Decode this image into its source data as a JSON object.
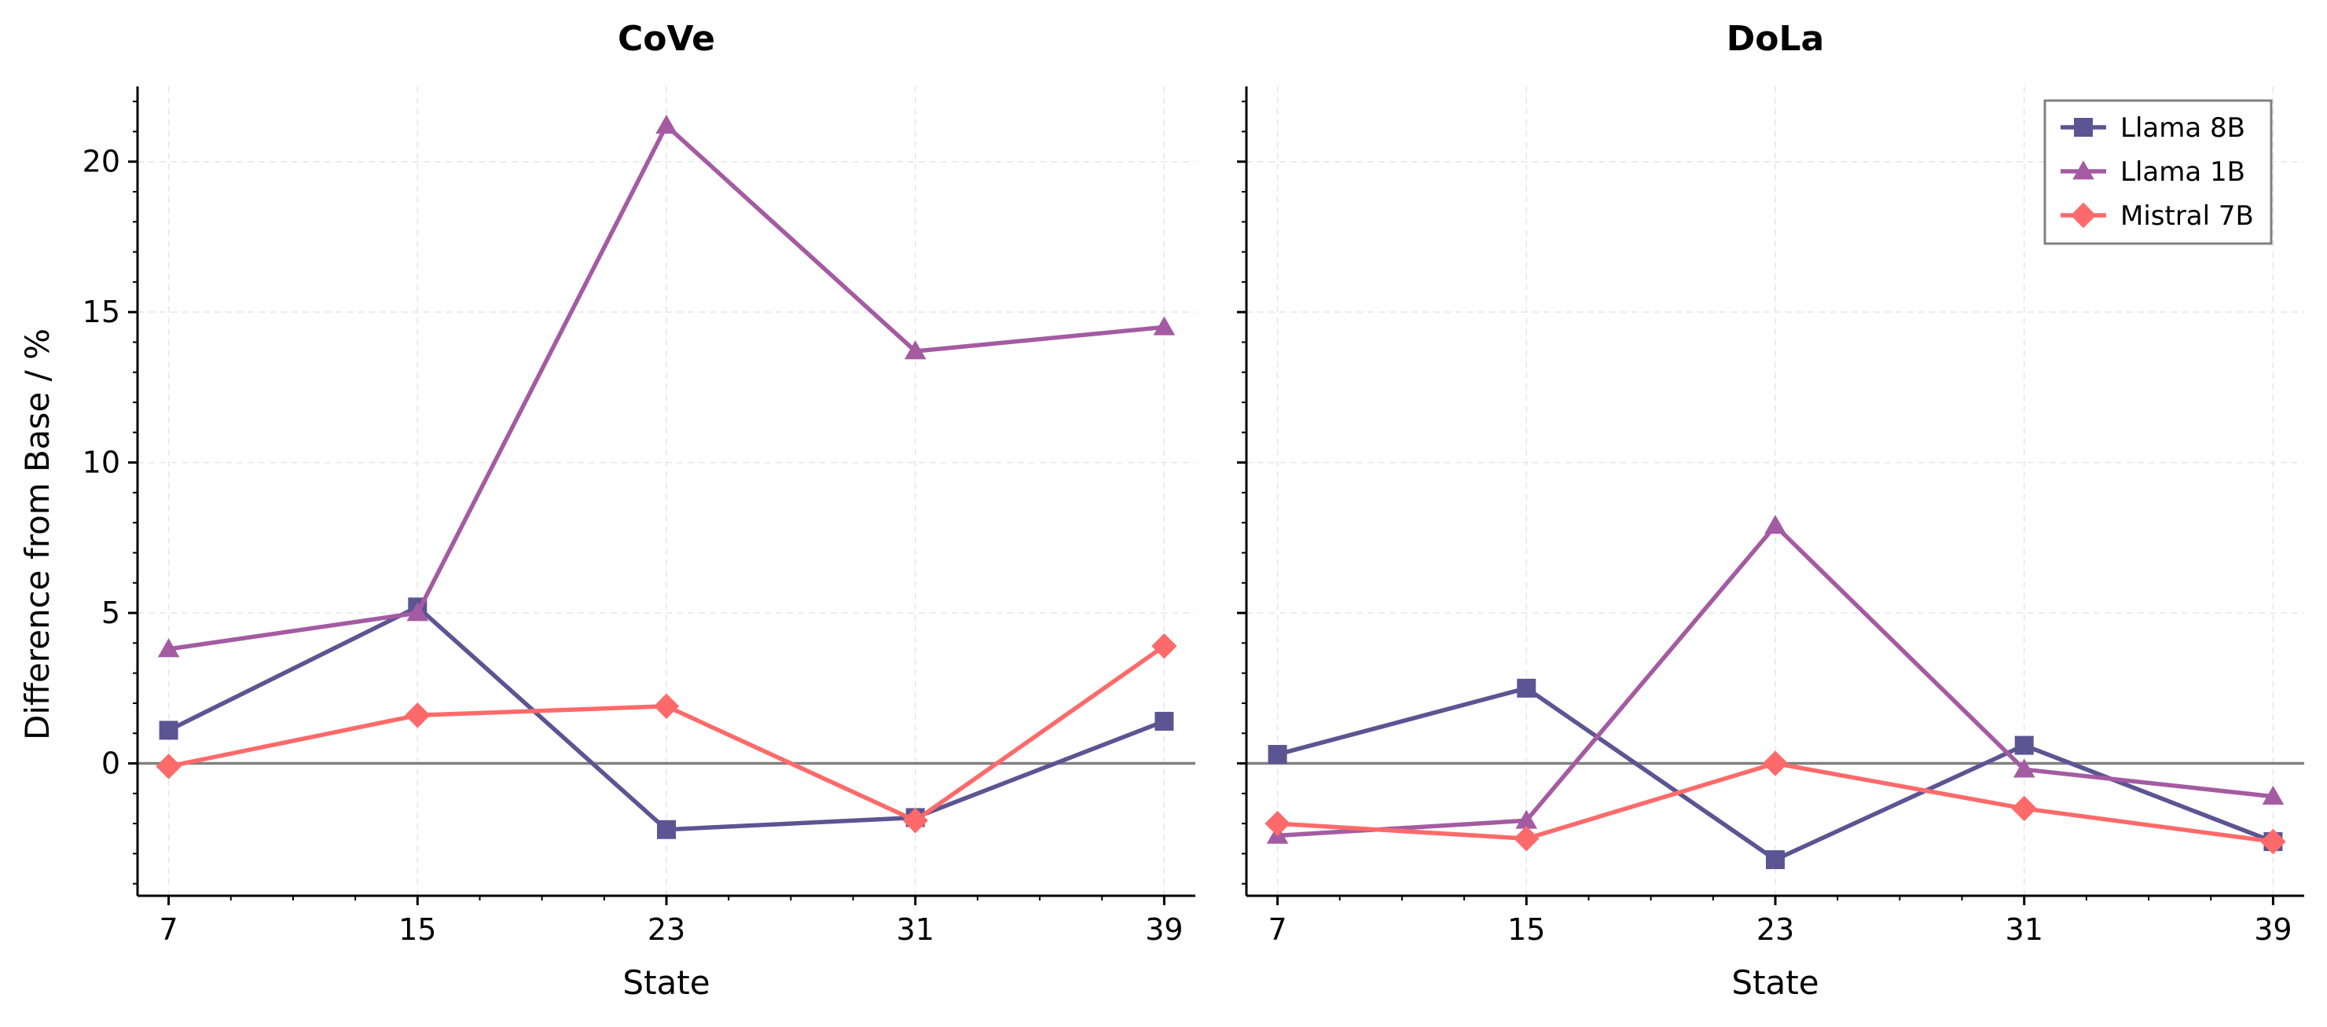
{
  "chart_data": [
    {
      "type": "line",
      "title": "CoVe",
      "xlabel": "State",
      "ylabel": "Difference from Base / %",
      "x": [
        7,
        15,
        23,
        31,
        39
      ],
      "xticks": [
        "7",
        "15",
        "23",
        "31",
        "39"
      ],
      "yticks": [
        "0",
        "5",
        "10",
        "15",
        "20"
      ],
      "xlim": [
        6,
        40
      ],
      "ylim": [
        -4.4,
        22.5
      ],
      "reference_line": 0,
      "series": [
        {
          "name": "Llama 8B",
          "marker": "square",
          "color": "#5b5593",
          "values": [
            1.1,
            5.2,
            -2.2,
            -1.8,
            1.4
          ]
        },
        {
          "name": "Llama 1B",
          "marker": "triangle",
          "color": "#a45ba2",
          "values": [
            3.8,
            5.0,
            21.2,
            13.7,
            14.5
          ]
        },
        {
          "name": "Mistral 7B",
          "marker": "diamond",
          "color": "#fe6a6a",
          "values": [
            -0.1,
            1.6,
            1.9,
            -1.9,
            3.9
          ]
        }
      ]
    },
    {
      "type": "line",
      "title": "DoLa",
      "xlabel": "State",
      "ylabel": "",
      "x": [
        7,
        15,
        23,
        31,
        39
      ],
      "xticks": [
        "7",
        "15",
        "23",
        "31",
        "39"
      ],
      "xlim": [
        6,
        40
      ],
      "ylim": [
        -4.4,
        22.5
      ],
      "reference_line": 0,
      "legend": "top-right",
      "series": [
        {
          "name": "Llama 8B",
          "marker": "square",
          "color": "#5b5593",
          "values": [
            0.3,
            2.5,
            -3.2,
            0.6,
            -2.6
          ]
        },
        {
          "name": "Llama 1B",
          "marker": "triangle",
          "color": "#a45ba2",
          "values": [
            -2.4,
            -1.9,
            7.9,
            -0.2,
            -1.1
          ]
        },
        {
          "name": "Mistral 7B",
          "marker": "diamond",
          "color": "#fe6a6a",
          "values": [
            -2.0,
            -2.5,
            0.0,
            -1.5,
            -2.6
          ]
        }
      ]
    }
  ]
}
